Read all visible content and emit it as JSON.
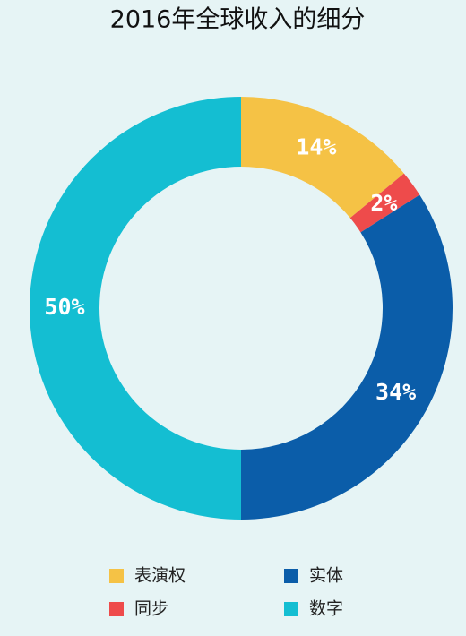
{
  "chart_data": {
    "type": "donut",
    "title": "2016年全球收入的细分",
    "categories": [
      "表演权",
      "同步",
      "实体",
      "数字"
    ],
    "values": [
      14,
      2,
      34,
      50
    ],
    "value_labels": [
      "14%",
      "2%",
      "34%",
      "50%"
    ],
    "colors": [
      "#f5c245",
      "#ee4b4b",
      "#0b5da9",
      "#14bed2"
    ],
    "legend": "bottom"
  }
}
